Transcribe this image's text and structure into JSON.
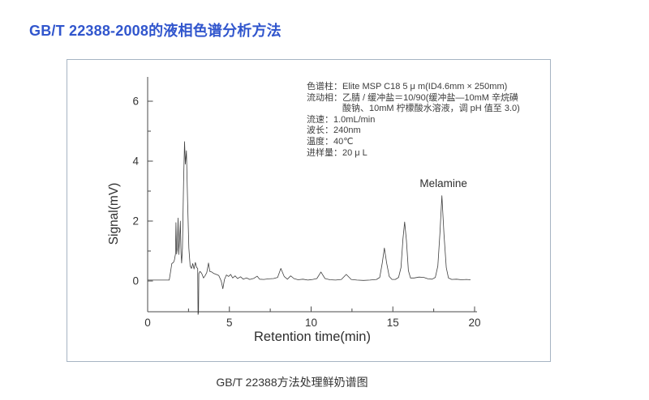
{
  "page": {
    "title": "GB/T 22388-2008的液相色谱分析方法",
    "caption": "GB/T 22388方法处理鲜奶谱图"
  },
  "colors": {
    "title_blue": "#3156cd",
    "figure_border": "#a6b4c3",
    "axis": "#4a4a4a",
    "trace": "#3f3f3f"
  },
  "chart_data": {
    "type": "line",
    "title": "",
    "xlabel": "Retention time(min)",
    "ylabel": "Signal(mV)",
    "xlim": [
      0,
      20.1
    ],
    "ylim": [
      -1.05,
      6.8
    ],
    "x_ticks": [
      0,
      5,
      10,
      15,
      20
    ],
    "x_minor_ticks": [
      2.5,
      7.5,
      12.5,
      17.5
    ],
    "y_ticks": [
      0,
      2,
      4,
      6
    ],
    "y_minor_ticks": [
      1,
      3,
      5
    ],
    "grid": false,
    "legend": false,
    "peak_annotation": {
      "label": "Melamine",
      "t": 18.0,
      "signal": 2.85
    },
    "conditions": [
      "色谱柱：Elite MSP C18 5 μ m(ID4.6mm × 250mm)",
      "流动相：乙腈 / 缓冲盐＝10/90(缓冲盐—10mM 辛烷磺",
      "　　　　酸钠、10mM 柠檬酸水溶液，调 pH 值至 3.0)",
      "流速：1.0mL/min",
      "波长：240nm",
      "温度：40℃",
      "进样量：20 μ L"
    ],
    "series": [
      {
        "name": "chromatogram",
        "points": [
          [
            0,
            0.03
          ],
          [
            0.6,
            0.03
          ],
          [
            1.1,
            0.03
          ],
          [
            1.32,
            0.03
          ],
          [
            1.4,
            0.3
          ],
          [
            1.48,
            0.58
          ],
          [
            1.58,
            0.62
          ],
          [
            1.64,
            0.7
          ],
          [
            1.7,
            0.9
          ],
          [
            1.73,
            1.95
          ],
          [
            1.77,
            0.9
          ],
          [
            1.82,
            1.1
          ],
          [
            1.86,
            2.1
          ],
          [
            1.9,
            0.88
          ],
          [
            1.95,
            1.35
          ],
          [
            2.0,
            2.0
          ],
          [
            2.04,
            0.95
          ],
          [
            2.08,
            0.6
          ],
          [
            2.13,
            1.1
          ],
          [
            2.2,
            3.3
          ],
          [
            2.26,
            4.65
          ],
          [
            2.31,
            3.9
          ],
          [
            2.37,
            4.35
          ],
          [
            2.44,
            2.7
          ],
          [
            2.52,
            1.1
          ],
          [
            2.6,
            0.5
          ],
          [
            2.68,
            0.42
          ],
          [
            2.76,
            0.58
          ],
          [
            2.84,
            0.4
          ],
          [
            2.92,
            0.62
          ],
          [
            3.0,
            0.45
          ],
          [
            3.06,
            0.42
          ],
          [
            3.08,
            -1.12
          ],
          [
            3.11,
            -1.05
          ],
          [
            3.13,
            0.25
          ],
          [
            3.2,
            0.32
          ],
          [
            3.3,
            0.26
          ],
          [
            3.42,
            0.1
          ],
          [
            3.52,
            0.18
          ],
          [
            3.62,
            0.28
          ],
          [
            3.72,
            0.6
          ],
          [
            3.8,
            0.32
          ],
          [
            3.92,
            0.3
          ],
          [
            4.05,
            0.25
          ],
          [
            4.2,
            0.22
          ],
          [
            4.35,
            0.18
          ],
          [
            4.5,
            0.0
          ],
          [
            4.6,
            -0.26
          ],
          [
            4.7,
            0.05
          ],
          [
            4.82,
            0.2
          ],
          [
            4.95,
            0.15
          ],
          [
            5.08,
            0.22
          ],
          [
            5.2,
            0.1
          ],
          [
            5.35,
            0.17
          ],
          [
            5.5,
            0.08
          ],
          [
            5.68,
            0.14
          ],
          [
            5.85,
            0.06
          ],
          [
            6.05,
            0.1
          ],
          [
            6.25,
            0.05
          ],
          [
            6.5,
            0.09
          ],
          [
            6.7,
            0.16
          ],
          [
            6.85,
            0.06
          ],
          [
            7.1,
            0.05
          ],
          [
            7.4,
            0.07
          ],
          [
            7.7,
            0.08
          ],
          [
            7.95,
            0.12
          ],
          [
            8.15,
            0.42
          ],
          [
            8.35,
            0.15
          ],
          [
            8.55,
            0.06
          ],
          [
            8.75,
            0.17
          ],
          [
            8.95,
            0.08
          ],
          [
            9.2,
            0.04
          ],
          [
            9.5,
            0.06
          ],
          [
            9.8,
            0.03
          ],
          [
            10.1,
            0.05
          ],
          [
            10.35,
            0.08
          ],
          [
            10.6,
            0.3
          ],
          [
            10.85,
            0.08
          ],
          [
            11.15,
            0.04
          ],
          [
            11.5,
            0.03
          ],
          [
            11.85,
            0.05
          ],
          [
            12.15,
            0.22
          ],
          [
            12.45,
            0.05
          ],
          [
            12.8,
            0.03
          ],
          [
            13.2,
            0.02
          ],
          [
            13.6,
            0.03
          ],
          [
            14.0,
            0.05
          ],
          [
            14.2,
            0.12
          ],
          [
            14.35,
            0.6
          ],
          [
            14.48,
            1.1
          ],
          [
            14.62,
            0.6
          ],
          [
            14.78,
            0.15
          ],
          [
            14.95,
            0.05
          ],
          [
            15.15,
            0.05
          ],
          [
            15.35,
            0.12
          ],
          [
            15.5,
            0.45
          ],
          [
            15.62,
            1.4
          ],
          [
            15.72,
            1.97
          ],
          [
            15.83,
            1.35
          ],
          [
            15.95,
            0.35
          ],
          [
            16.08,
            0.1
          ],
          [
            16.3,
            0.1
          ],
          [
            16.6,
            0.13
          ],
          [
            16.9,
            0.12
          ],
          [
            17.15,
            0.07
          ],
          [
            17.4,
            0.06
          ],
          [
            17.6,
            0.12
          ],
          [
            17.75,
            0.5
          ],
          [
            17.88,
            1.6
          ],
          [
            18.0,
            2.85
          ],
          [
            18.13,
            1.55
          ],
          [
            18.27,
            0.45
          ],
          [
            18.4,
            0.1
          ],
          [
            18.6,
            0.05
          ],
          [
            18.9,
            0.06
          ],
          [
            19.2,
            0.04
          ],
          [
            19.5,
            0.05
          ],
          [
            19.75,
            0.04
          ]
        ]
      }
    ]
  }
}
